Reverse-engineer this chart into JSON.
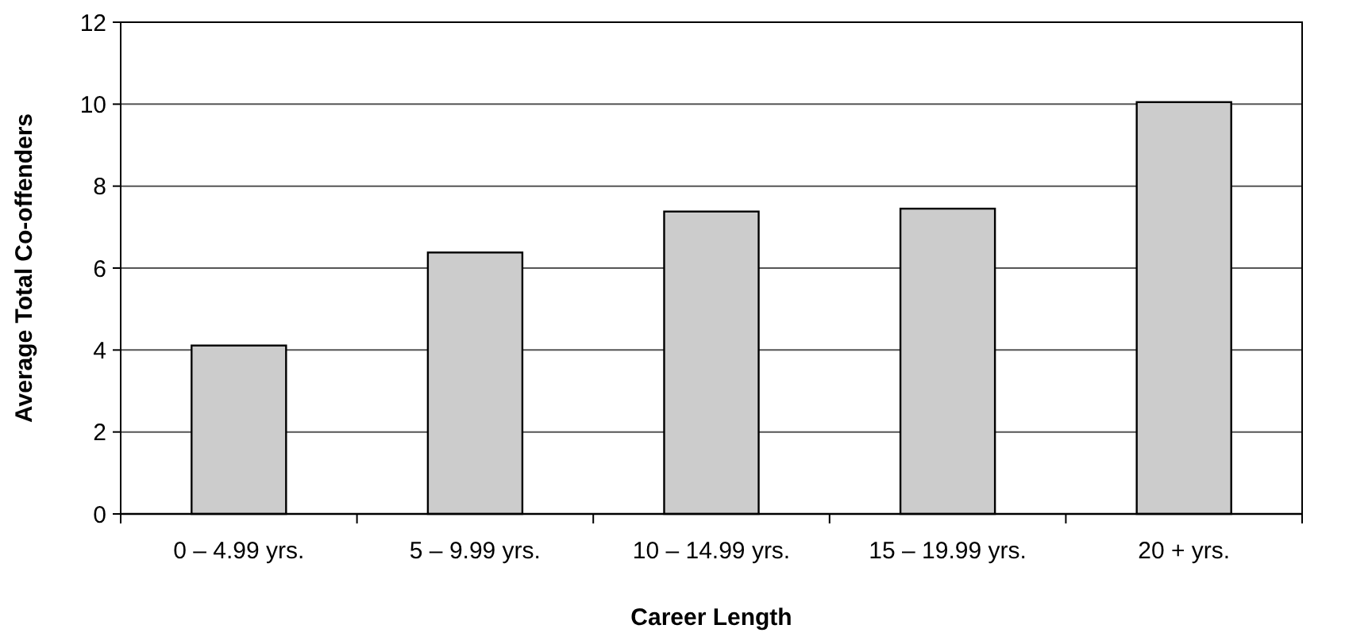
{
  "chart_data": {
    "type": "bar",
    "xlabel": "Career Length",
    "ylabel": "Average Total Co-offenders",
    "categories": [
      "0 – 4.99 yrs.",
      "5 – 9.99 yrs.",
      "10 – 14.99 yrs.",
      "15 – 19.99 yrs.",
      "20 + yrs."
    ],
    "values": [
      4.11,
      6.38,
      7.38,
      7.45,
      10.05
    ],
    "color": "#cccccc",
    "ylim": [
      0,
      12
    ],
    "yticks": [
      0,
      2,
      4,
      6,
      8,
      10,
      12
    ],
    "grid": "y"
  }
}
